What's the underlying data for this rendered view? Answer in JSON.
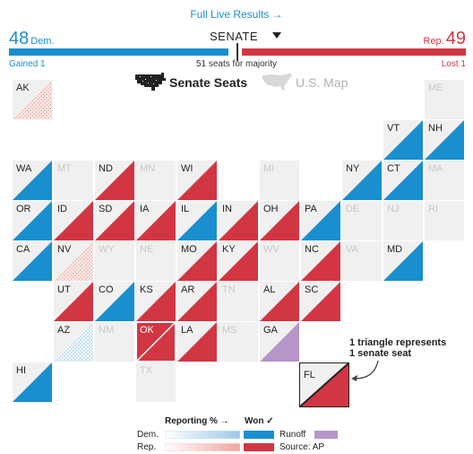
{
  "header": {
    "link_text": "Full Live Results →",
    "race_label": "SENATE",
    "dem_count": "48",
    "dem_label": "Dem.",
    "rep_count": "49",
    "rep_label": "Rep.",
    "gained_label": "Gained 1",
    "majority_label": "51 seats for majority",
    "lost_label": "Lost 1",
    "bar": {
      "dem_seats": 48,
      "rep_seats": 49,
      "total_seats": 100
    }
  },
  "view_toggle": {
    "seats_label": "Senate Seats",
    "map_label": "U.S. Map",
    "seats_icon": "pixel-us-map-icon",
    "map_icon": "us-map-icon"
  },
  "colors": {
    "dem": "#1a8fcf",
    "rep": "#d23642",
    "runoff": "#b695c8",
    "no_race": "#f0f0f0",
    "rep_reporting": "#f4b3ab",
    "dem_reporting": "#b9d7ee"
  },
  "states": [
    {
      "abbr": "AK",
      "col": 0,
      "row": 0,
      "seats": [
        "none",
        "rep-rpt"
      ]
    },
    {
      "abbr": "ME",
      "col": 10,
      "row": 0,
      "seats": [
        "none",
        "none"
      ]
    },
    {
      "abbr": "VT",
      "col": 9,
      "row": 1,
      "seats": [
        "none",
        "dem"
      ]
    },
    {
      "abbr": "NH",
      "col": 10,
      "row": 1,
      "seats": [
        "none",
        "dem"
      ]
    },
    {
      "abbr": "WA",
      "col": 0,
      "row": 2,
      "seats": [
        "none",
        "dem"
      ]
    },
    {
      "abbr": "MT",
      "col": 1,
      "row": 2,
      "seats": [
        "none",
        "none"
      ]
    },
    {
      "abbr": "ND",
      "col": 2,
      "row": 2,
      "seats": [
        "none",
        "rep"
      ]
    },
    {
      "abbr": "MN",
      "col": 3,
      "row": 2,
      "seats": [
        "none",
        "none"
      ]
    },
    {
      "abbr": "WI",
      "col": 4,
      "row": 2,
      "seats": [
        "none",
        "rep"
      ]
    },
    {
      "abbr": "MI",
      "col": 6,
      "row": 2,
      "seats": [
        "none",
        "none"
      ]
    },
    {
      "abbr": "NY",
      "col": 8,
      "row": 2,
      "seats": [
        "none",
        "dem"
      ]
    },
    {
      "abbr": "CT",
      "col": 9,
      "row": 2,
      "seats": [
        "none",
        "dem"
      ]
    },
    {
      "abbr": "MA",
      "col": 10,
      "row": 2,
      "seats": [
        "none",
        "none"
      ]
    },
    {
      "abbr": "OR",
      "col": 0,
      "row": 3,
      "seats": [
        "none",
        "dem"
      ]
    },
    {
      "abbr": "ID",
      "col": 1,
      "row": 3,
      "seats": [
        "none",
        "rep"
      ]
    },
    {
      "abbr": "SD",
      "col": 2,
      "row": 3,
      "seats": [
        "none",
        "rep"
      ]
    },
    {
      "abbr": "IA",
      "col": 3,
      "row": 3,
      "seats": [
        "none",
        "rep"
      ]
    },
    {
      "abbr": "IL",
      "col": 4,
      "row": 3,
      "seats": [
        "none",
        "dem"
      ]
    },
    {
      "abbr": "IN",
      "col": 5,
      "row": 3,
      "seats": [
        "none",
        "rep"
      ]
    },
    {
      "abbr": "OH",
      "col": 6,
      "row": 3,
      "seats": [
        "none",
        "rep"
      ]
    },
    {
      "abbr": "PA",
      "col": 7,
      "row": 3,
      "seats": [
        "none",
        "dem"
      ]
    },
    {
      "abbr": "DE",
      "col": 8,
      "row": 3,
      "seats": [
        "none",
        "none"
      ]
    },
    {
      "abbr": "NJ",
      "col": 9,
      "row": 3,
      "seats": [
        "none",
        "none"
      ]
    },
    {
      "abbr": "RI",
      "col": 10,
      "row": 3,
      "seats": [
        "none",
        "none"
      ]
    },
    {
      "abbr": "CA",
      "col": 0,
      "row": 4,
      "seats": [
        "none",
        "dem"
      ]
    },
    {
      "abbr": "NV",
      "col": 1,
      "row": 4,
      "seats": [
        "none",
        "rep-rpt"
      ]
    },
    {
      "abbr": "WY",
      "col": 2,
      "row": 4,
      "seats": [
        "none",
        "none"
      ]
    },
    {
      "abbr": "NE",
      "col": 3,
      "row": 4,
      "seats": [
        "none",
        "none"
      ]
    },
    {
      "abbr": "MO",
      "col": 4,
      "row": 4,
      "seats": [
        "none",
        "rep"
      ]
    },
    {
      "abbr": "KY",
      "col": 5,
      "row": 4,
      "seats": [
        "none",
        "rep"
      ]
    },
    {
      "abbr": "WV",
      "col": 6,
      "row": 4,
      "seats": [
        "none",
        "none"
      ]
    },
    {
      "abbr": "NC",
      "col": 7,
      "row": 4,
      "seats": [
        "none",
        "rep"
      ]
    },
    {
      "abbr": "VA",
      "col": 8,
      "row": 4,
      "seats": [
        "none",
        "none"
      ]
    },
    {
      "abbr": "MD",
      "col": 9,
      "row": 4,
      "seats": [
        "none",
        "dem"
      ]
    },
    {
      "abbr": "UT",
      "col": 1,
      "row": 5,
      "seats": [
        "none",
        "rep"
      ]
    },
    {
      "abbr": "CO",
      "col": 2,
      "row": 5,
      "seats": [
        "none",
        "dem"
      ]
    },
    {
      "abbr": "KS",
      "col": 3,
      "row": 5,
      "seats": [
        "none",
        "rep"
      ]
    },
    {
      "abbr": "AR",
      "col": 4,
      "row": 5,
      "seats": [
        "none",
        "rep"
      ]
    },
    {
      "abbr": "TN",
      "col": 5,
      "row": 5,
      "seats": [
        "none",
        "none"
      ]
    },
    {
      "abbr": "AL",
      "col": 6,
      "row": 5,
      "seats": [
        "none",
        "rep"
      ]
    },
    {
      "abbr": "SC",
      "col": 7,
      "row": 5,
      "seats": [
        "none",
        "rep"
      ]
    },
    {
      "abbr": "AZ",
      "col": 1,
      "row": 6,
      "seats": [
        "none",
        "dem-rpt"
      ]
    },
    {
      "abbr": "NM",
      "col": 2,
      "row": 6,
      "seats": [
        "none",
        "none"
      ]
    },
    {
      "abbr": "OK",
      "col": 3,
      "row": 6,
      "seats": [
        "rep",
        "rep"
      ]
    },
    {
      "abbr": "LA",
      "col": 4,
      "row": 6,
      "seats": [
        "none",
        "rep"
      ]
    },
    {
      "abbr": "MS",
      "col": 5,
      "row": 6,
      "seats": [
        "none",
        "none"
      ]
    },
    {
      "abbr": "GA",
      "col": 6,
      "row": 6,
      "seats": [
        "none",
        "runoff"
      ]
    },
    {
      "abbr": "HI",
      "col": 0,
      "row": 7,
      "seats": [
        "none",
        "dem"
      ]
    },
    {
      "abbr": "TX",
      "col": 3,
      "row": 7,
      "seats": [
        "none",
        "none"
      ]
    }
  ],
  "annotation": {
    "line1": "1 triangle represents",
    "line2": "1 senate seat",
    "example_state": "FL"
  },
  "legend": {
    "reporting_label": "Reporting % →",
    "won_label": "Won ✓",
    "dem_label": "Dem.",
    "rep_label": "Rep.",
    "runoff_label": "Runoff",
    "source_label": "Source: AP"
  }
}
